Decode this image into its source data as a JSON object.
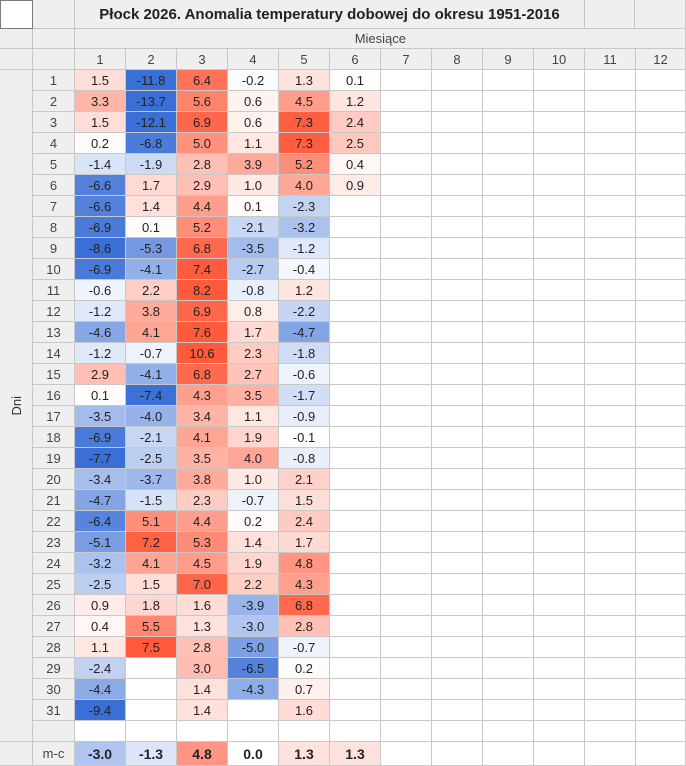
{
  "chart_data": {
    "type": "heatmap",
    "title": "Płock 2026. Anomalia temperatury dobowej  do okresu 1951-2016",
    "xlabel": "Miesiące",
    "ylabel": "Dni",
    "month_labels": [
      "1",
      "2",
      "3",
      "4",
      "5",
      "6",
      "7",
      "8",
      "9",
      "10",
      "11",
      "12"
    ],
    "day_labels": [
      "1",
      "2",
      "3",
      "4",
      "5",
      "6",
      "7",
      "8",
      "9",
      "10",
      "11",
      "12",
      "13",
      "14",
      "15",
      "16",
      "17",
      "18",
      "19",
      "20",
      "21",
      "22",
      "23",
      "24",
      "25",
      "26",
      "27",
      "28",
      "29",
      "30",
      "31"
    ],
    "columns": [
      [
        "1.5",
        "3.3",
        "1.5",
        "0.2",
        "-1.4",
        "-6.6",
        "-6.6",
        "-6.9",
        "-8.6",
        "-6.9",
        "-0.6",
        "-1.2",
        "-4.6",
        "-1.2",
        "2.9",
        "0.1",
        "-3.5",
        "-6.9",
        "-7.7",
        "-3.4",
        "-4.7",
        "-6.4",
        "-5.1",
        "-3.2",
        "-2.5",
        "0.9",
        "0.4",
        "1.1",
        "-2.4",
        "-4.4",
        "-9.4"
      ],
      [
        "-11.8",
        "-13.7",
        "-12.1",
        "-6.8",
        "-1.9",
        "1.7",
        "1.4",
        "0.1",
        "-5.3",
        "-4.1",
        "2.2",
        "3.8",
        "4.1",
        "-0.7",
        "-4.1",
        "-7.4",
        "-4.0",
        "-2.1",
        "-2.5",
        "-3.7",
        "-1.5",
        "5.1",
        "7.2",
        "4.1",
        "1.5",
        "1.8",
        "5.5",
        "7.5"
      ],
      [
        "6.4",
        "5.6",
        "6.9",
        "5.0",
        "2.8",
        "2.9",
        "4.4",
        "5.2",
        "6.8",
        "7.4",
        "8.2",
        "6.9",
        "7.6",
        "10.6",
        "6.8",
        "4.3",
        "3.4",
        "4.1",
        "3.5",
        "3.8",
        "2.3",
        "4.4",
        "5.3",
        "4.5",
        "7.0",
        "1.6",
        "1.3",
        "2.8",
        "3.0",
        "1.4",
        "1.4"
      ],
      [
        "-0.2",
        "0.6",
        "0.6",
        "1.1",
        "3.9",
        "1.0",
        "0.1",
        "-2.1",
        "-3.5",
        "-2.7",
        "-0.8",
        "0.8",
        "1.7",
        "2.3",
        "2.7",
        "3.5",
        "1.1",
        "1.9",
        "4.0",
        "1.0",
        "-0.7",
        "0.2",
        "1.4",
        "1.9",
        "2.2",
        "-3.9",
        "-3.0",
        "-5.0",
        "-6.5",
        "-4.3"
      ],
      [
        "1.3",
        "4.5",
        "7.3",
        "7.3",
        "5.2",
        "4.0",
        "-2.3",
        "-3.2",
        "-1.2",
        "-0.4",
        "1.2",
        "-2.2",
        "-4.7",
        "-1.8",
        "-0.6",
        "-1.7",
        "-0.9",
        "-0.1",
        "-0.8",
        "2.1",
        "1.5",
        "2.4",
        "1.7",
        "4.8",
        "4.3",
        "6.8",
        "2.8",
        "-0.7",
        "0.2",
        "0.7",
        "1.6"
      ],
      [
        "0.1",
        "1.2",
        "2.4",
        "2.5",
        "0.4",
        "0.9"
      ]
    ],
    "summary_label": "m-c",
    "monthly_means": [
      "-3.0",
      "-1.3",
      "4.8",
      "0.0",
      "1.3",
      "1.3"
    ],
    "color_scale": {
      "negative": "#3a6fd6",
      "neutral": "#ffffff",
      "positive": "#ff5a3c"
    }
  }
}
